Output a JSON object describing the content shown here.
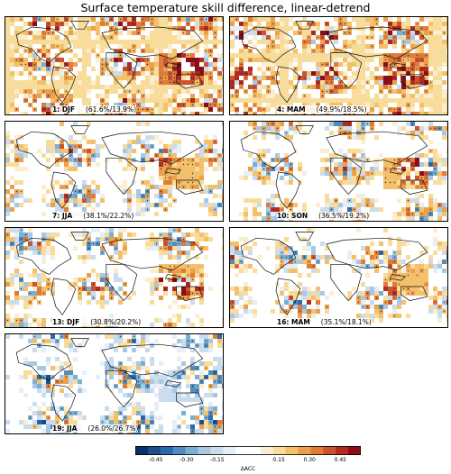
{
  "figure": {
    "title": "Surface temperature skill difference, linear-detrend"
  },
  "chart_data": {
    "type": "heatmap",
    "title": "Surface temperature skill difference, linear-detrend",
    "panels": [
      {
        "id": 1,
        "lead": "1",
        "season": "DJF",
        "stats": "(61.6%/13.9%)",
        "accent": "positive"
      },
      {
        "id": 2,
        "lead": "4",
        "season": "MAM",
        "stats": "(49.9%/18.5%)",
        "accent": "positive"
      },
      {
        "id": 3,
        "lead": "7",
        "season": "JJA",
        "stats": "(38.1%/22.2%)",
        "accent": "mixed"
      },
      {
        "id": 4,
        "lead": "10",
        "season": "SON",
        "stats": "(36.5%/19.2%)",
        "accent": "mixed"
      },
      {
        "id": 5,
        "lead": "13",
        "season": "DJF",
        "stats": "(30.8%/20.2%)",
        "accent": "mixed"
      },
      {
        "id": 6,
        "lead": "16",
        "season": "MAM",
        "stats": "(35.1%/18.1%)",
        "accent": "mixed"
      },
      {
        "id": 7,
        "lead": "19",
        "season": "JJA",
        "stats": "(26.0%/26.7%)",
        "accent": "negative"
      }
    ],
    "colorbar": {
      "label": "ΔACC",
      "vmin": -0.55,
      "vmax": 0.55,
      "ticks": [
        "-0.45",
        "-0.30",
        "-0.15",
        "0.15",
        "0.30",
        "0.45"
      ],
      "tick_values": [
        -0.45,
        -0.3,
        -0.15,
        0.15,
        0.3,
        0.45
      ],
      "levels": [
        "#0b2f6b",
        "#1a4e8c",
        "#2e6aa9",
        "#4f8cc0",
        "#7aaed3",
        "#a6c8e2",
        "#cadcee",
        "#e6eef7",
        "#ffffff",
        "#ffffff",
        "#fbeed0",
        "#f8dc9b",
        "#f3c06b",
        "#eda04c",
        "#df7b3b",
        "#cc5330",
        "#b22a22",
        "#8c0d17"
      ]
    }
  }
}
